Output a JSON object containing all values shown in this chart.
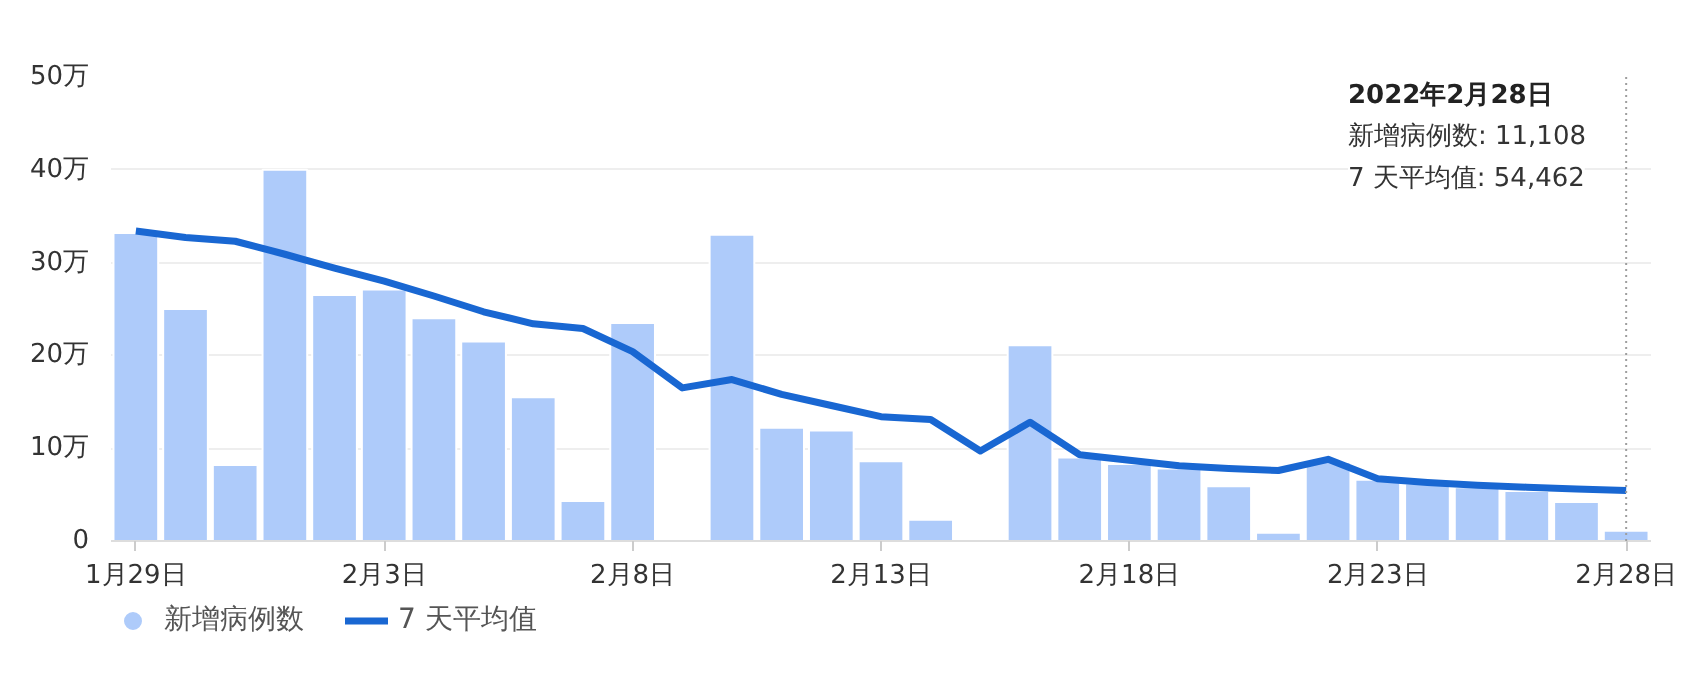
{
  "chart_data": {
    "type": "bar",
    "categories": [
      "1月29日",
      null,
      null,
      null,
      null,
      "2月3日",
      null,
      null,
      null,
      null,
      "2月8日",
      null,
      null,
      null,
      null,
      "2月13日",
      null,
      null,
      null,
      null,
      "2月18日",
      null,
      null,
      null,
      null,
      "2月23日",
      null,
      null,
      null,
      null,
      "2月28日"
    ],
    "series": [
      {
        "name": "新增病例数",
        "color": "#aecbfa",
        "values": [
          33.2,
          25.0,
          8.2,
          40.0,
          26.5,
          27.1,
          24.0,
          21.5,
          15.5,
          4.3,
          23.5,
          null,
          33.0,
          12.2,
          11.9,
          8.6,
          2.3,
          null,
          21.1,
          9.0,
          8.3,
          7.8,
          5.9,
          0.9,
          8.5,
          6.6,
          6.2,
          5.8,
          5.4,
          4.2,
          1.11
        ]
      },
      {
        "name": "7 天平均值",
        "type": "line",
        "color": "#1967d2",
        "values": [
          33.4,
          32.7,
          32.3,
          30.9,
          29.4,
          28.0,
          26.4,
          24.7,
          23.4,
          22.9,
          20.4,
          16.5,
          17.4,
          15.8,
          14.6,
          13.4,
          13.1,
          9.7,
          12.8,
          9.3,
          8.7,
          8.1,
          7.8,
          7.6,
          8.8,
          6.7,
          6.3,
          6.0,
          5.8,
          5.6,
          5.45
        ]
      }
    ],
    "ylim": [
      0,
      50
    ],
    "yticks": [
      0,
      {
        "value": 10,
        "label": "10万"
      },
      {
        "value": 20,
        "label": "20万"
      },
      {
        "value": 30,
        "label": "30万"
      },
      {
        "value": 40,
        "label": "40万"
      },
      {
        "value": 50,
        "label": "50万"
      }
    ],
    "grid": "y",
    "legend": "bottom",
    "ref_lines": [
      {
        "axis": "x",
        "value": "2月28日",
        "color": "#9e9e9e",
        "line_style": "dotted"
      }
    ],
    "annotations": [
      "2022年2月28日",
      "新增病例数: 11,108",
      "7 天平均值: 54,462"
    ]
  }
}
